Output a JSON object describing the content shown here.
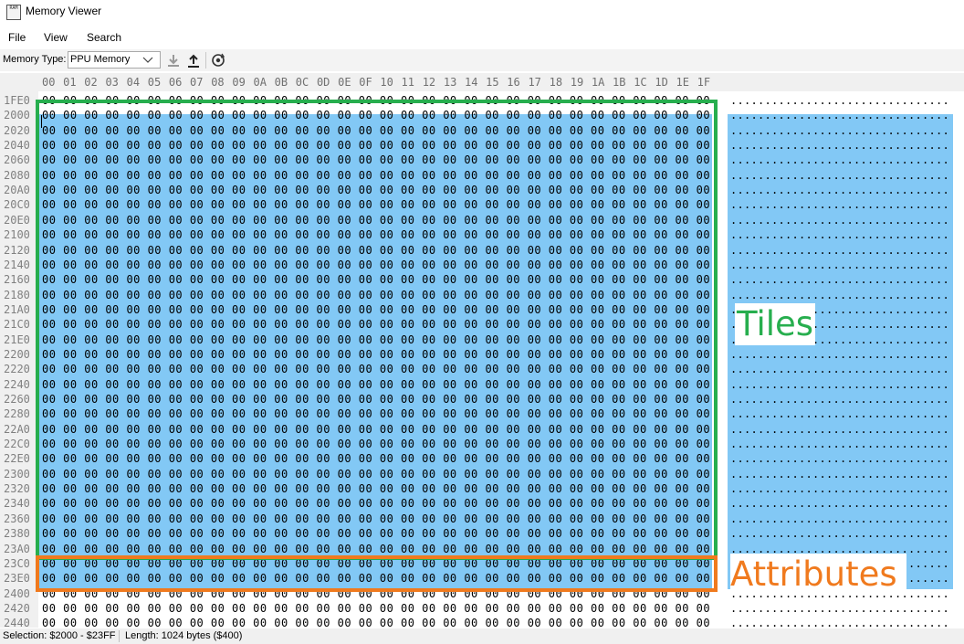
{
  "window": {
    "title": "Memory Viewer",
    "icon": "app-icon",
    "icon_text": "RAM"
  },
  "menu": {
    "items": [
      "File",
      "View",
      "Search"
    ]
  },
  "toolbar": {
    "memory_type_label": "Memory Type:",
    "memory_type_value": "PPU Memory",
    "buttons": [
      "import-icon",
      "export-icon",
      "refresh-icon"
    ]
  },
  "hex": {
    "columns": [
      "00",
      "01",
      "02",
      "03",
      "04",
      "05",
      "06",
      "07",
      "08",
      "09",
      "0A",
      "0B",
      "0C",
      "0D",
      "0E",
      "0F",
      "10",
      "11",
      "12",
      "13",
      "14",
      "15",
      "16",
      "17",
      "18",
      "19",
      "1A",
      "1B",
      "1C",
      "1D",
      "1E",
      "1F"
    ],
    "rows": [
      {
        "addr": "1FE0",
        "hex": "00 00 00 00 00 00 00 00 00 00 00 00 00 00 00 00 00 00 00 00 00 00 00 00 00 00 00 00 00 00 00 00",
        "ascii": "................................"
      },
      {
        "addr": "2000",
        "hex": "00 00 00 00 00 00 00 00 00 00 00 00 00 00 00 00 00 00 00 00 00 00 00 00 00 00 00 00 00 00 00 00",
        "ascii": "................................"
      },
      {
        "addr": "2020",
        "hex": "00 00 00 00 00 00 00 00 00 00 00 00 00 00 00 00 00 00 00 00 00 00 00 00 00 00 00 00 00 00 00 00",
        "ascii": "................................"
      },
      {
        "addr": "2040",
        "hex": "00 00 00 00 00 00 00 00 00 00 00 00 00 00 00 00 00 00 00 00 00 00 00 00 00 00 00 00 00 00 00 00",
        "ascii": "................................"
      },
      {
        "addr": "2060",
        "hex": "00 00 00 00 00 00 00 00 00 00 00 00 00 00 00 00 00 00 00 00 00 00 00 00 00 00 00 00 00 00 00 00",
        "ascii": "................................"
      },
      {
        "addr": "2080",
        "hex": "00 00 00 00 00 00 00 00 00 00 00 00 00 00 00 00 00 00 00 00 00 00 00 00 00 00 00 00 00 00 00 00",
        "ascii": "................................"
      },
      {
        "addr": "20A0",
        "hex": "00 00 00 00 00 00 00 00 00 00 00 00 00 00 00 00 00 00 00 00 00 00 00 00 00 00 00 00 00 00 00 00",
        "ascii": "................................"
      },
      {
        "addr": "20C0",
        "hex": "00 00 00 00 00 00 00 00 00 00 00 00 00 00 00 00 00 00 00 00 00 00 00 00 00 00 00 00 00 00 00 00",
        "ascii": "................................"
      },
      {
        "addr": "20E0",
        "hex": "00 00 00 00 00 00 00 00 00 00 00 00 00 00 00 00 00 00 00 00 00 00 00 00 00 00 00 00 00 00 00 00",
        "ascii": "................................"
      },
      {
        "addr": "2100",
        "hex": "00 00 00 00 00 00 00 00 00 00 00 00 00 00 00 00 00 00 00 00 00 00 00 00 00 00 00 00 00 00 00 00",
        "ascii": "................................"
      },
      {
        "addr": "2120",
        "hex": "00 00 00 00 00 00 00 00 00 00 00 00 00 00 00 00 00 00 00 00 00 00 00 00 00 00 00 00 00 00 00 00",
        "ascii": "................................"
      },
      {
        "addr": "2140",
        "hex": "00 00 00 00 00 00 00 00 00 00 00 00 00 00 00 00 00 00 00 00 00 00 00 00 00 00 00 00 00 00 00 00",
        "ascii": "................................"
      },
      {
        "addr": "2160",
        "hex": "00 00 00 00 00 00 00 00 00 00 00 00 00 00 00 00 00 00 00 00 00 00 00 00 00 00 00 00 00 00 00 00",
        "ascii": "................................"
      },
      {
        "addr": "2180",
        "hex": "00 00 00 00 00 00 00 00 00 00 00 00 00 00 00 00 00 00 00 00 00 00 00 00 00 00 00 00 00 00 00 00",
        "ascii": "................................"
      },
      {
        "addr": "21A0",
        "hex": "00 00 00 00 00 00 00 00 00 00 00 00 00 00 00 00 00 00 00 00 00 00 00 00 00 00 00 00 00 00 00 00",
        "ascii": "................................"
      },
      {
        "addr": "21C0",
        "hex": "00 00 00 00 00 00 00 00 00 00 00 00 00 00 00 00 00 00 00 00 00 00 00 00 00 00 00 00 00 00 00 00",
        "ascii": "................................"
      },
      {
        "addr": "21E0",
        "hex": "00 00 00 00 00 00 00 00 00 00 00 00 00 00 00 00 00 00 00 00 00 00 00 00 00 00 00 00 00 00 00 00",
        "ascii": "................................"
      },
      {
        "addr": "2200",
        "hex": "00 00 00 00 00 00 00 00 00 00 00 00 00 00 00 00 00 00 00 00 00 00 00 00 00 00 00 00 00 00 00 00",
        "ascii": "................................"
      },
      {
        "addr": "2220",
        "hex": "00 00 00 00 00 00 00 00 00 00 00 00 00 00 00 00 00 00 00 00 00 00 00 00 00 00 00 00 00 00 00 00",
        "ascii": "................................"
      },
      {
        "addr": "2240",
        "hex": "00 00 00 00 00 00 00 00 00 00 00 00 00 00 00 00 00 00 00 00 00 00 00 00 00 00 00 00 00 00 00 00",
        "ascii": "................................"
      },
      {
        "addr": "2260",
        "hex": "00 00 00 00 00 00 00 00 00 00 00 00 00 00 00 00 00 00 00 00 00 00 00 00 00 00 00 00 00 00 00 00",
        "ascii": "................................"
      },
      {
        "addr": "2280",
        "hex": "00 00 00 00 00 00 00 00 00 00 00 00 00 00 00 00 00 00 00 00 00 00 00 00 00 00 00 00 00 00 00 00",
        "ascii": "................................"
      },
      {
        "addr": "22A0",
        "hex": "00 00 00 00 00 00 00 00 00 00 00 00 00 00 00 00 00 00 00 00 00 00 00 00 00 00 00 00 00 00 00 00",
        "ascii": "................................"
      },
      {
        "addr": "22C0",
        "hex": "00 00 00 00 00 00 00 00 00 00 00 00 00 00 00 00 00 00 00 00 00 00 00 00 00 00 00 00 00 00 00 00",
        "ascii": "................................"
      },
      {
        "addr": "22E0",
        "hex": "00 00 00 00 00 00 00 00 00 00 00 00 00 00 00 00 00 00 00 00 00 00 00 00 00 00 00 00 00 00 00 00",
        "ascii": "................................"
      },
      {
        "addr": "2300",
        "hex": "00 00 00 00 00 00 00 00 00 00 00 00 00 00 00 00 00 00 00 00 00 00 00 00 00 00 00 00 00 00 00 00",
        "ascii": "................................"
      },
      {
        "addr": "2320",
        "hex": "00 00 00 00 00 00 00 00 00 00 00 00 00 00 00 00 00 00 00 00 00 00 00 00 00 00 00 00 00 00 00 00",
        "ascii": "................................"
      },
      {
        "addr": "2340",
        "hex": "00 00 00 00 00 00 00 00 00 00 00 00 00 00 00 00 00 00 00 00 00 00 00 00 00 00 00 00 00 00 00 00",
        "ascii": "................................"
      },
      {
        "addr": "2360",
        "hex": "00 00 00 00 00 00 00 00 00 00 00 00 00 00 00 00 00 00 00 00 00 00 00 00 00 00 00 00 00 00 00 00",
        "ascii": "................................"
      },
      {
        "addr": "2380",
        "hex": "00 00 00 00 00 00 00 00 00 00 00 00 00 00 00 00 00 00 00 00 00 00 00 00 00 00 00 00 00 00 00 00",
        "ascii": "................................"
      },
      {
        "addr": "23A0",
        "hex": "00 00 00 00 00 00 00 00 00 00 00 00 00 00 00 00 00 00 00 00 00 00 00 00 00 00 00 00 00 00 00 00",
        "ascii": "................................"
      },
      {
        "addr": "23C0",
        "hex": "00 00 00 00 00 00 00 00 00 00 00 00 00 00 00 00 00 00 00 00 00 00 00 00 00 00 00 00 00 00 00 00",
        "ascii": "................................"
      },
      {
        "addr": "23E0",
        "hex": "00 00 00 00 00 00 00 00 00 00 00 00 00 00 00 00 00 00 00 00 00 00 00 00 00 00 00 00 00 00 00 00",
        "ascii": "................................"
      },
      {
        "addr": "2400",
        "hex": "00 00 00 00 00 00 00 00 00 00 00 00 00 00 00 00 00 00 00 00 00 00 00 00 00 00 00 00 00 00 00 00",
        "ascii": "................................"
      },
      {
        "addr": "2420",
        "hex": "00 00 00 00 00 00 00 00 00 00 00 00 00 00 00 00 00 00 00 00 00 00 00 00 00 00 00 00 00 00 00 00",
        "ascii": "................................"
      },
      {
        "addr": "2440",
        "hex": "00 00 00 00 00 00 00 00 00 00 00 00 00 00 00 00 00 00 00 00 00 00 00 00 00 00 00 00 00 00 00 00",
        "ascii": "................................"
      }
    ]
  },
  "annotations": {
    "tiles": "Tiles",
    "attributes": "Attributes",
    "tiles_color": "#27ae4e",
    "attributes_color": "#f07a1e"
  },
  "selection_color": "#82c8f5",
  "status": {
    "selection": "Selection: $2000 - $23FF",
    "length": "Length: 1024 bytes ($400)"
  }
}
